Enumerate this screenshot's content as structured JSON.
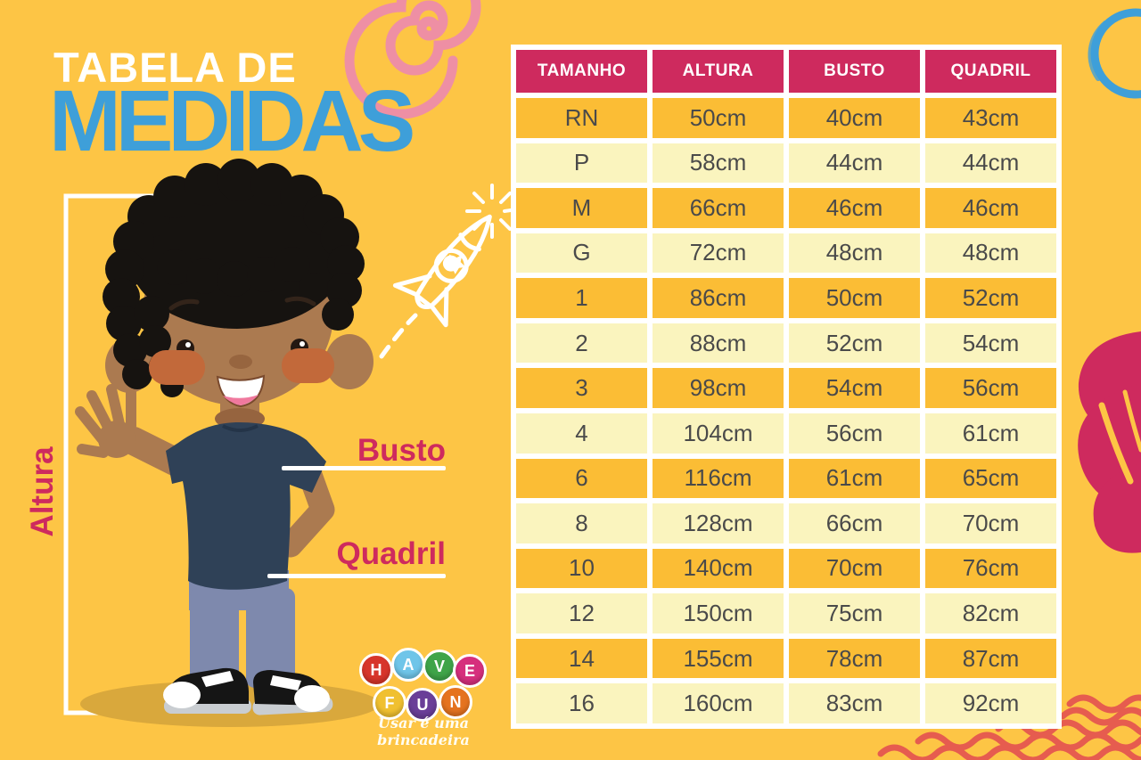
{
  "title": {
    "line1": "TABELA DE",
    "line2": "MEDIDAS"
  },
  "measure_labels": {
    "height": "Altura",
    "bust": "Busto",
    "hip": "Quadril"
  },
  "logo": {
    "letters": [
      {
        "ch": "H",
        "color": "#d7352b"
      },
      {
        "ch": "A",
        "color": "#6fc5e9"
      },
      {
        "ch": "V",
        "color": "#3fa449"
      },
      {
        "ch": "E",
        "color": "#d62f7d"
      },
      {
        "ch": "F",
        "color": "#f0c030"
      },
      {
        "ch": "U",
        "color": "#6a3e98"
      },
      {
        "ch": "N",
        "color": "#e5731f"
      }
    ],
    "tagline": "Usar é uma brincadeira"
  },
  "chart_data": {
    "type": "table",
    "title": "Tabela de Medidas",
    "columns": [
      "TAMANHO",
      "ALTURA",
      "BUSTO",
      "QUADRIL"
    ],
    "rows": [
      [
        "RN",
        "50cm",
        "40cm",
        "43cm"
      ],
      [
        "P",
        "58cm",
        "44cm",
        "44cm"
      ],
      [
        "M",
        "66cm",
        "46cm",
        "46cm"
      ],
      [
        "G",
        "72cm",
        "48cm",
        "48cm"
      ],
      [
        "1",
        "86cm",
        "50cm",
        "52cm"
      ],
      [
        "2",
        "88cm",
        "52cm",
        "54cm"
      ],
      [
        "3",
        "98cm",
        "54cm",
        "56cm"
      ],
      [
        "4",
        "104cm",
        "56cm",
        "61cm"
      ],
      [
        "6",
        "116cm",
        "61cm",
        "65cm"
      ],
      [
        "8",
        "128cm",
        "66cm",
        "70cm"
      ],
      [
        "10",
        "140cm",
        "70cm",
        "76cm"
      ],
      [
        "12",
        "150cm",
        "75cm",
        "82cm"
      ],
      [
        "14",
        "155cm",
        "78cm",
        "87cm"
      ],
      [
        "16",
        "160cm",
        "83cm",
        "92cm"
      ]
    ]
  },
  "colors": {
    "background": "#fdc545",
    "table_header": "#ce2a5e",
    "row_dark": "#fbbd35",
    "row_light": "#faf4be",
    "title_blue": "#3e9fd9",
    "label_pink": "#ce2a5e",
    "wave_red": "#e65c4f",
    "swirl_pink": "#ee8fa4",
    "scribble_blue": "#3e9fd9"
  }
}
